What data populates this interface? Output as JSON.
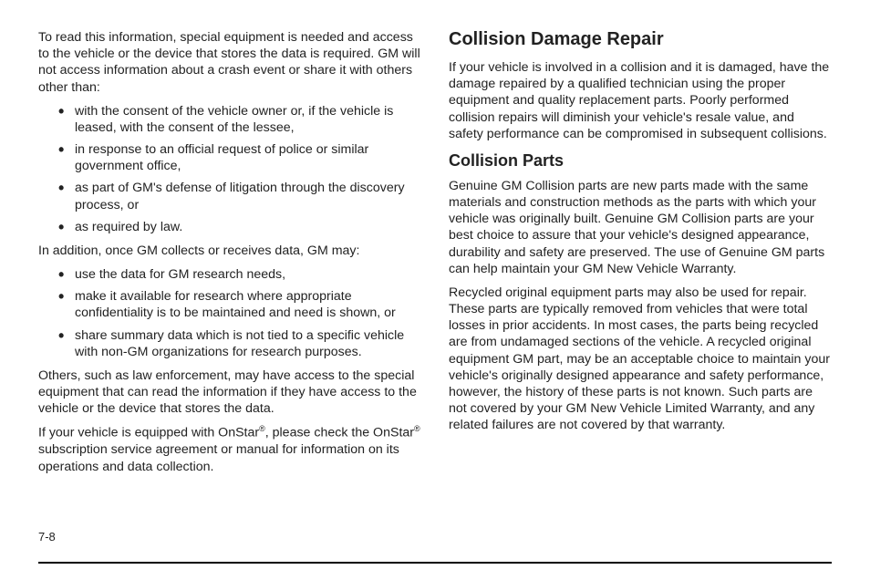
{
  "pageNumber": "7-8",
  "left": {
    "p1": "To read this information, special equipment is needed and access to the vehicle or the device that stores the data is required. GM will not access information about a crash event or share it with others other than:",
    "list1": [
      "with the consent of the vehicle owner or, if the vehicle is leased, with the consent of the lessee,",
      "in response to an official request of police or similar government office,",
      "as part of GM's defense of litigation through the discovery process, or",
      "as required by law."
    ],
    "p2": "In addition, once GM collects or receives data, GM may:",
    "list2": [
      "use the data for GM research needs,",
      "make it available for research where appropriate confidentiality is to be maintained and need is shown, or",
      "share summary data which is not tied to a specific vehicle with non-GM organizations for research purposes."
    ],
    "p3": "Others, such as law enforcement, may have access to the special equipment that can read the information if they have access to the vehicle or the device that stores the data.",
    "p4a": "If your vehicle is equipped with OnStar",
    "p4b": ", please check the OnStar",
    "p4c": " subscription service agreement or manual for information on its operations and data collection.",
    "reg": "®"
  },
  "right": {
    "h2": "Collision Damage Repair",
    "p1": "If your vehicle is involved in a collision and it is damaged, have the damage repaired by a qualified technician using the proper equipment and quality replacement parts. Poorly performed collision repairs will diminish your vehicle's resale value, and safety performance can be compromised in subsequent collisions.",
    "h3": "Collision Parts",
    "p2": "Genuine GM Collision parts are new parts made with the same materials and construction methods as the parts with which your vehicle was originally built. Genuine GM Collision parts are your best choice to assure that your vehicle's designed appearance, durability and safety are preserved. The use of Genuine GM parts can help maintain your GM New Vehicle Warranty.",
    "p3": "Recycled original equipment parts may also be used for repair. These parts are typically removed from vehicles that were total losses in prior accidents. In most cases, the parts being recycled are from undamaged sections of the vehicle. A recycled original equipment GM part, may be an acceptable choice to maintain your vehicle's originally designed appearance and safety performance, however, the history of these parts is not known. Such parts are not covered by your GM New Vehicle Limited Warranty, and any related failures are not covered by that warranty."
  }
}
